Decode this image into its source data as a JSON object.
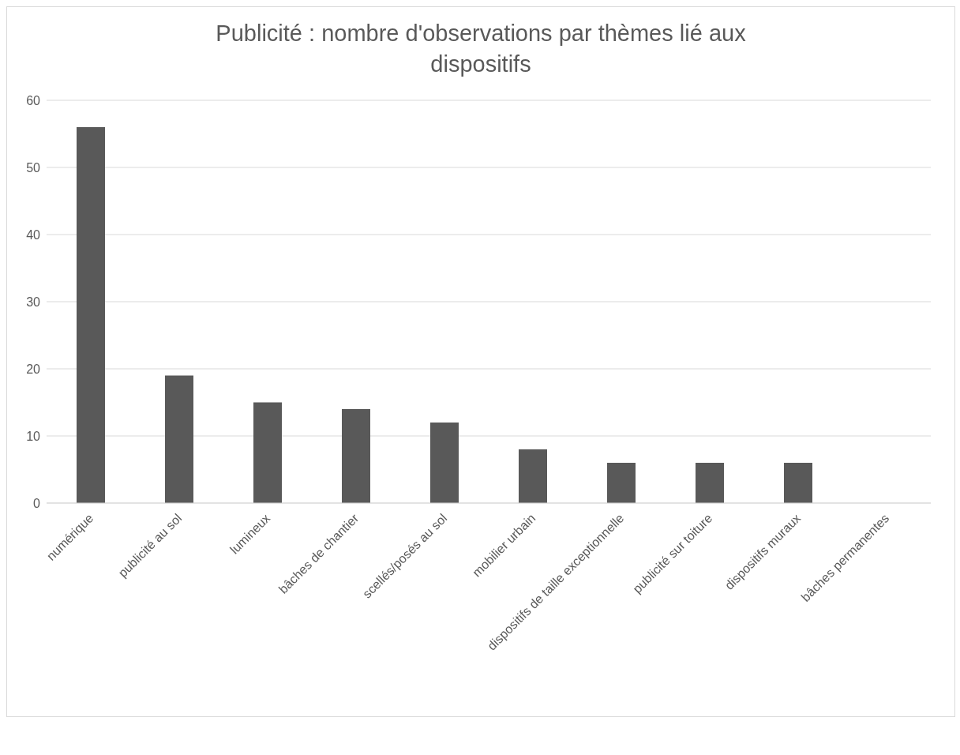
{
  "chart_data": {
    "type": "bar",
    "title": "Publicité : nombre d'observations par thèmes lié aux dispositifs",
    "categories": [
      "numérique",
      "publicité au sol",
      "lumineux",
      "bâches de chantier",
      "scellés/posés au sol",
      "mobilier urbain",
      "dispositifs de taille exceptionnelle",
      "publicité sur toiture",
      "dispositifs muraux",
      "bâches permanentes"
    ],
    "values": [
      56,
      19,
      15,
      14,
      12,
      8,
      6,
      6,
      6,
      0
    ],
    "color": "#595959",
    "ylim": [
      0,
      60
    ],
    "yticks": [
      0,
      10,
      20,
      30,
      40,
      50,
      60
    ],
    "grid": "y"
  }
}
